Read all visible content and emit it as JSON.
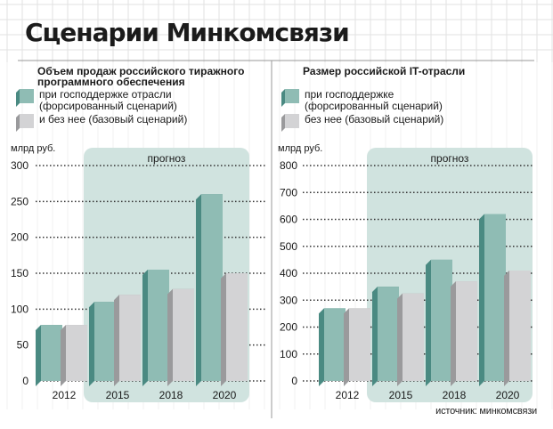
{
  "title": "Сценарии Минкомсвязи",
  "source": "источник: минкомсвязи",
  "colors": {
    "forced": "#8fbcb4",
    "forced_dark": "#4a8a82",
    "base": "#d3d3d5",
    "base_dark": "#9a9a9c",
    "forecast_bg": "#d0e3df",
    "grid_dots": "#333333"
  },
  "chart_data": [
    {
      "type": "bar",
      "title": "Объем продаж российского тиражного программного обеспечения",
      "legend": [
        {
          "name": "при господдержке отрасли (форсированный сценарий)",
          "color": "#8fbcb4"
        },
        {
          "name": "и без нее (базовый сценарий)",
          "color": "#d3d3d5"
        }
      ],
      "ylabel": "млрд руб.",
      "forecast_label": "прогноз",
      "categories": [
        "2012",
        "2015",
        "2018",
        "2020"
      ],
      "ylim": [
        0,
        300
      ],
      "yticks": [
        "0",
        "50",
        "100",
        "150",
        "200",
        "250",
        "300"
      ],
      "series": [
        {
          "name": "при господдержке отрасли (форсированный сценарий)",
          "values": [
            78,
            110,
            155,
            260
          ]
        },
        {
          "name": "и без нее (базовый сценарий)",
          "values": [
            78,
            120,
            128,
            150
          ]
        }
      ],
      "grid": true,
      "legend_position": "top-left"
    },
    {
      "type": "bar",
      "title": "Размер российской IT-отрасли",
      "legend": [
        {
          "name": "при господдержке (форсированный сценарий)",
          "color": "#8fbcb4"
        },
        {
          "name": "без нее (базовый сценарий)",
          "color": "#d3d3d5"
        }
      ],
      "ylabel": "млрд руб.",
      "forecast_label": "прогноз",
      "categories": [
        "2012",
        "2015",
        "2018",
        "2020"
      ],
      "ylim": [
        0,
        800
      ],
      "yticks": [
        "0",
        "100",
        "200",
        "300",
        "400",
        "500",
        "600",
        "700",
        "800"
      ],
      "series": [
        {
          "name": "при господдержке (форсированный сценарий)",
          "values": [
            270,
            350,
            450,
            620
          ]
        },
        {
          "name": "без нее (базовый сценарий)",
          "values": [
            270,
            325,
            370,
            410
          ]
        }
      ],
      "grid": true,
      "legend_position": "top-left"
    }
  ]
}
